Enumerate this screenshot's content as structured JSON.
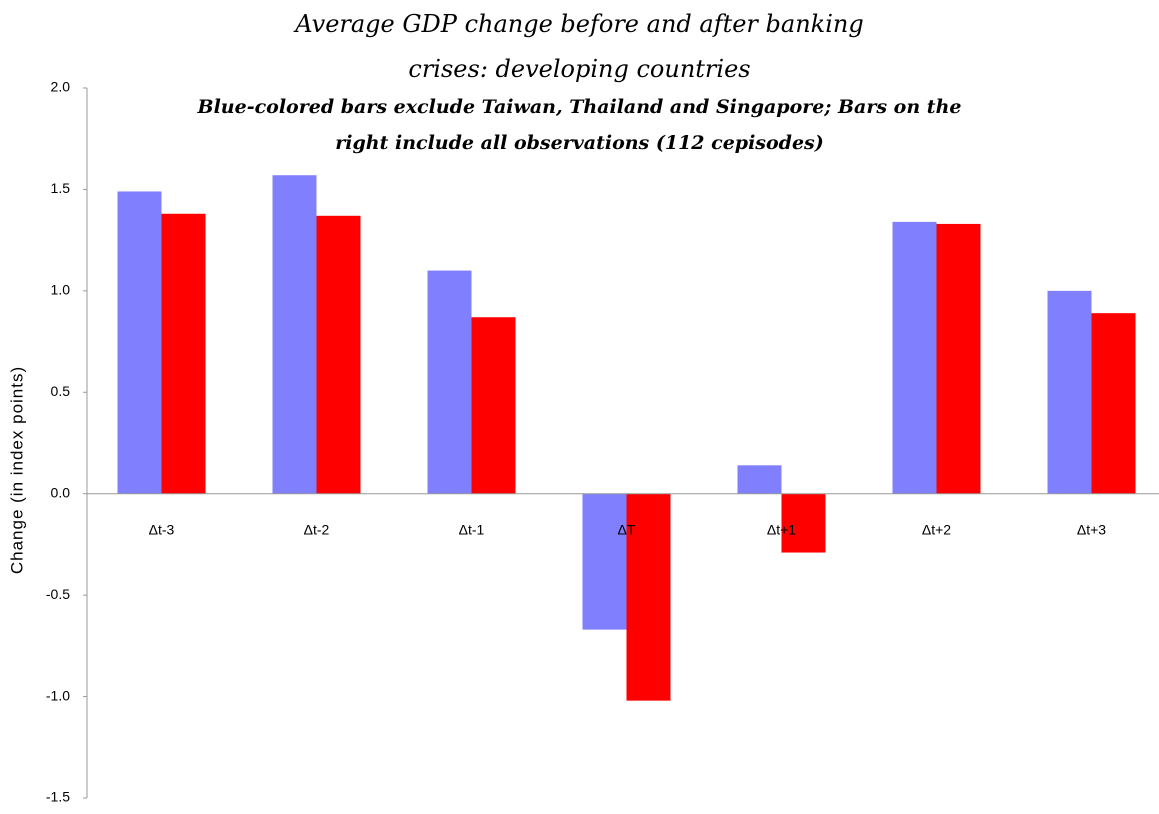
{
  "chart_data": {
    "type": "bar",
    "title": "Average GDP change before and after banking crises: developing countries",
    "subtitle": "Blue-colored bars exclude Taiwan, Thailand and Singapore; Bars on the right include all observations (112 cepisodes)",
    "y_label": "Change (in index points)",
    "categories": [
      "Δt-3",
      "Δt-2",
      "Δt-1",
      "ΔT",
      "Δt+1",
      "Δt+2",
      "Δt+3"
    ],
    "series": [
      {
        "color": "#8080ff",
        "values": [
          1.49,
          1.57,
          1.1,
          -0.67,
          0.14,
          1.34,
          1.0
        ]
      },
      {
        "color": "#ff0000",
        "values": [
          1.38,
          1.37,
          0.87,
          -1.02,
          -0.29,
          1.33,
          0.89
        ]
      }
    ],
    "ylim": [
      -1.5,
      2
    ],
    "yticks": [
      -1.5,
      {
        "value": -1,
        "label": "-1.0"
      },
      -0.5,
      {
        "value": 0,
        "label": "0.0"
      },
      0.5,
      {
        "value": 1,
        "label": "1.0"
      },
      1.5,
      {
        "value": 2,
        "label": "2.0"
      }
    ],
    "grid": false
  }
}
